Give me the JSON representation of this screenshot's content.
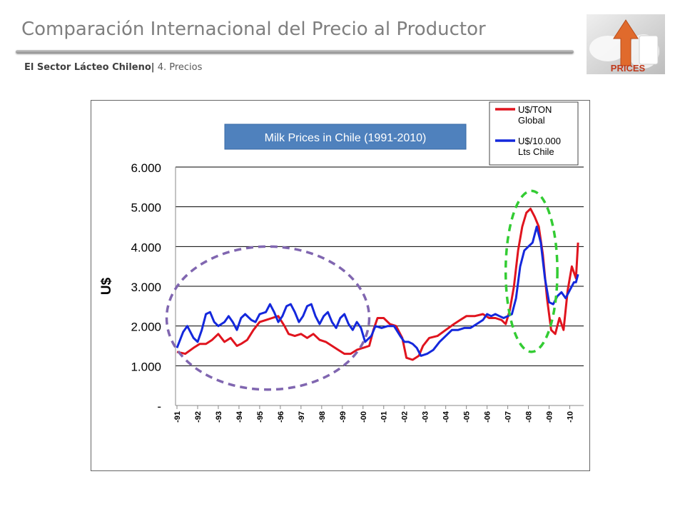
{
  "header": {
    "title": "Comparación Internacional del Precio al Productor",
    "sector": "El Sector Lácteo Chileno|",
    "section": "4. Precios"
  },
  "logo": {
    "text": "PRICES"
  },
  "chart_data": {
    "type": "line",
    "title": "Milk Prices in Chile (1991-2010)",
    "ylabel": "U$",
    "ylim": [
      0,
      6000
    ],
    "y_ticks": [
      {
        "value": 0,
        "label": "-"
      },
      {
        "value": 1000,
        "label": "1.000"
      },
      {
        "value": 2000,
        "label": "2.000"
      },
      {
        "value": 3000,
        "label": "3.000"
      },
      {
        "value": 4000,
        "label": "4.000"
      },
      {
        "value": 5000,
        "label": "5.000"
      },
      {
        "value": 6000,
        "label": "6.000"
      }
    ],
    "xlim": [
      1991,
      2010.5
    ],
    "x_ticks": [
      "-91",
      "-92",
      "-93",
      "-94",
      "-95",
      "-96",
      "-97",
      "-98",
      "-99",
      "-00",
      "-01",
      "-02",
      "-03",
      "-04",
      "-05",
      "-06",
      "-07",
      "-08",
      "-09",
      "-10"
    ],
    "grid": true,
    "legend_position": "top-right",
    "series": [
      {
        "name": "U$/TON Global",
        "color": "#e0141e",
        "points": [
          [
            1991.0,
            1350
          ],
          [
            1991.4,
            1300
          ],
          [
            1991.8,
            1450
          ],
          [
            1992.1,
            1550
          ],
          [
            1992.4,
            1550
          ],
          [
            1992.7,
            1650
          ],
          [
            1993.0,
            1800
          ],
          [
            1993.3,
            1600
          ],
          [
            1993.6,
            1700
          ],
          [
            1993.9,
            1500
          ],
          [
            1994.1,
            1550
          ],
          [
            1994.4,
            1650
          ],
          [
            1994.7,
            1900
          ],
          [
            1995.0,
            2100
          ],
          [
            1995.3,
            2150
          ],
          [
            1995.6,
            2200
          ],
          [
            1995.9,
            2250
          ],
          [
            1996.2,
            2000
          ],
          [
            1996.4,
            1800
          ],
          [
            1996.7,
            1750
          ],
          [
            1997.0,
            1800
          ],
          [
            1997.3,
            1700
          ],
          [
            1997.6,
            1800
          ],
          [
            1997.9,
            1650
          ],
          [
            1998.2,
            1600
          ],
          [
            1998.5,
            1500
          ],
          [
            1998.8,
            1400
          ],
          [
            1999.1,
            1300
          ],
          [
            1999.4,
            1300
          ],
          [
            1999.7,
            1400
          ],
          [
            2000.0,
            1450
          ],
          [
            2000.3,
            1500
          ],
          [
            2000.5,
            1900
          ],
          [
            2000.7,
            2200
          ],
          [
            2001.0,
            2200
          ],
          [
            2001.3,
            2050
          ],
          [
            2001.6,
            2000
          ],
          [
            2001.9,
            1700
          ],
          [
            2002.1,
            1200
          ],
          [
            2002.4,
            1150
          ],
          [
            2002.7,
            1250
          ],
          [
            2002.9,
            1500
          ],
          [
            2003.2,
            1700
          ],
          [
            2003.6,
            1750
          ],
          [
            2004.0,
            1900
          ],
          [
            2004.4,
            2050
          ],
          [
            2004.7,
            2150
          ],
          [
            2005.0,
            2250
          ],
          [
            2005.4,
            2250
          ],
          [
            2005.8,
            2300
          ],
          [
            2006.1,
            2200
          ],
          [
            2006.4,
            2200
          ],
          [
            2006.7,
            2150
          ],
          [
            2006.9,
            2050
          ],
          [
            2007.1,
            2400
          ],
          [
            2007.3,
            3000
          ],
          [
            2007.5,
            3900
          ],
          [
            2007.7,
            4500
          ],
          [
            2007.9,
            4850
          ],
          [
            2008.1,
            4950
          ],
          [
            2008.3,
            4750
          ],
          [
            2008.5,
            4500
          ],
          [
            2008.7,
            3800
          ],
          [
            2008.9,
            2700
          ],
          [
            2009.1,
            1900
          ],
          [
            2009.3,
            1800
          ],
          [
            2009.5,
            2200
          ],
          [
            2009.7,
            1900
          ],
          [
            2009.9,
            2900
          ],
          [
            2010.1,
            3500
          ],
          [
            2010.3,
            3200
          ],
          [
            2010.4,
            4100
          ]
        ]
      },
      {
        "name": "U$/10.000 Lts Chile",
        "color": "#1428dc",
        "points": [
          [
            1991.0,
            1450
          ],
          [
            1991.3,
            1850
          ],
          [
            1991.5,
            2000
          ],
          [
            1991.8,
            1700
          ],
          [
            1992.0,
            1600
          ],
          [
            1992.2,
            1900
          ],
          [
            1992.4,
            2300
          ],
          [
            1992.6,
            2350
          ],
          [
            1992.8,
            2100
          ],
          [
            1993.0,
            2000
          ],
          [
            1993.3,
            2100
          ],
          [
            1993.5,
            2250
          ],
          [
            1993.7,
            2100
          ],
          [
            1993.9,
            1900
          ],
          [
            1994.1,
            2200
          ],
          [
            1994.3,
            2300
          ],
          [
            1994.6,
            2150
          ],
          [
            1994.8,
            2100
          ],
          [
            1995.0,
            2300
          ],
          [
            1995.3,
            2350
          ],
          [
            1995.5,
            2550
          ],
          [
            1995.7,
            2350
          ],
          [
            1995.9,
            2100
          ],
          [
            1996.1,
            2250
          ],
          [
            1996.3,
            2500
          ],
          [
            1996.5,
            2550
          ],
          [
            1996.7,
            2350
          ],
          [
            1996.9,
            2100
          ],
          [
            1997.1,
            2250
          ],
          [
            1997.3,
            2500
          ],
          [
            1997.5,
            2550
          ],
          [
            1997.7,
            2250
          ],
          [
            1997.9,
            2050
          ],
          [
            1998.1,
            2250
          ],
          [
            1998.3,
            2350
          ],
          [
            1998.5,
            2100
          ],
          [
            1998.7,
            1950
          ],
          [
            1998.9,
            2200
          ],
          [
            1999.1,
            2300
          ],
          [
            1999.3,
            2050
          ],
          [
            1999.5,
            1900
          ],
          [
            1999.7,
            2100
          ],
          [
            1999.9,
            1950
          ],
          [
            2000.1,
            1600
          ],
          [
            2000.4,
            1750
          ],
          [
            2000.6,
            2000
          ],
          [
            2000.9,
            1950
          ],
          [
            2001.2,
            2000
          ],
          [
            2001.5,
            2000
          ],
          [
            2001.8,
            1750
          ],
          [
            2002.0,
            1600
          ],
          [
            2002.2,
            1600
          ],
          [
            2002.4,
            1550
          ],
          [
            2002.6,
            1450
          ],
          [
            2002.8,
            1250
          ],
          [
            2003.1,
            1300
          ],
          [
            2003.4,
            1400
          ],
          [
            2003.7,
            1600
          ],
          [
            2004.0,
            1750
          ],
          [
            2004.3,
            1900
          ],
          [
            2004.6,
            1900
          ],
          [
            2004.9,
            1950
          ],
          [
            2005.2,
            1950
          ],
          [
            2005.5,
            2050
          ],
          [
            2005.8,
            2150
          ],
          [
            2006.0,
            2300
          ],
          [
            2006.2,
            2250
          ],
          [
            2006.4,
            2300
          ],
          [
            2006.6,
            2250
          ],
          [
            2006.8,
            2200
          ],
          [
            2007.0,
            2250
          ],
          [
            2007.2,
            2300
          ],
          [
            2007.4,
            2700
          ],
          [
            2007.6,
            3500
          ],
          [
            2007.8,
            3900
          ],
          [
            2008.0,
            4000
          ],
          [
            2008.2,
            4100
          ],
          [
            2008.4,
            4500
          ],
          [
            2008.6,
            4100
          ],
          [
            2008.8,
            3200
          ],
          [
            2009.0,
            2600
          ],
          [
            2009.2,
            2550
          ],
          [
            2009.4,
            2750
          ],
          [
            2009.6,
            2850
          ],
          [
            2009.8,
            2700
          ],
          [
            2010.0,
            2900
          ],
          [
            2010.2,
            3100
          ],
          [
            2010.3,
            3100
          ],
          [
            2010.4,
            3300
          ]
        ]
      }
    ],
    "annotations": [
      {
        "shape": "ellipse",
        "color": "#8066b0",
        "style": "dashed",
        "x_range": [
          1990.5,
          2000.3
        ],
        "y_range": [
          400,
          4000
        ]
      },
      {
        "shape": "ellipse",
        "color": "#33cc33",
        "style": "dashed",
        "x_range": [
          2006.9,
          2009.4
        ],
        "y_range": [
          1350,
          5400
        ]
      }
    ]
  }
}
